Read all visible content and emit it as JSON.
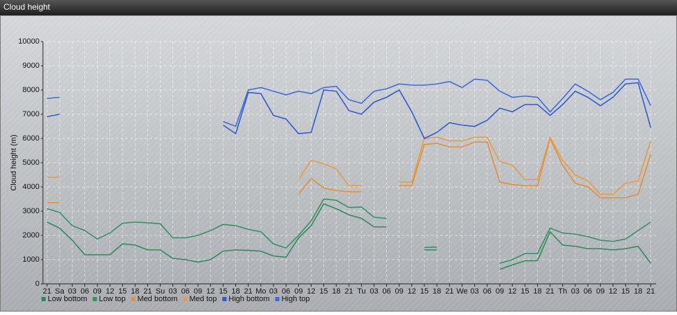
{
  "chart_data": {
    "type": "line",
    "title": "Cloud height",
    "y_label": "Cloud height (m)",
    "categories": [
      "21",
      "Sa",
      "03",
      "06",
      "09",
      "12",
      "15",
      "18",
      "21",
      "Su",
      "03",
      "06",
      "09",
      "12",
      "15",
      "18",
      "21",
      "Mo",
      "03",
      "06",
      "09",
      "12",
      "15",
      "18",
      "21",
      "Tu",
      "03",
      "06",
      "09",
      "12",
      "15",
      "18",
      "21",
      "We",
      "03",
      "06",
      "09",
      "12",
      "15",
      "18",
      "21",
      "Th",
      "03",
      "06",
      "09",
      "12",
      "15",
      "18",
      "21"
    ],
    "ylim": [
      0,
      10000
    ],
    "yticks": [
      0,
      1000,
      2000,
      3000,
      4000,
      5000,
      6000,
      7000,
      8000,
      9000,
      10000
    ],
    "grid": true,
    "series": [
      {
        "name": "Low bottom",
        "color": "#2e8b57",
        "values": [
          2550,
          2300,
          1800,
          1200,
          1200,
          1200,
          1650,
          1600,
          1400,
          1400,
          1050,
          1000,
          900,
          1000,
          1350,
          1400,
          1380,
          1350,
          1150,
          1100,
          1900,
          2400,
          3300,
          3100,
          2850,
          2700,
          2350,
          2350,
          null,
          null,
          1400,
          1400,
          null,
          null,
          null,
          null,
          600,
          780,
          950,
          960,
          2150,
          1600,
          1550,
          1450,
          1450,
          1400,
          1450,
          1550,
          850
        ]
      },
      {
        "name": "Low top",
        "color": "#33935f",
        "values": [
          3100,
          2950,
          2400,
          2200,
          1850,
          2100,
          2500,
          2550,
          2520,
          2480,
          1900,
          1900,
          2000,
          2200,
          2450,
          2400,
          2250,
          2150,
          1650,
          1480,
          2000,
          2600,
          3500,
          3450,
          3150,
          3170,
          2750,
          2700,
          null,
          null,
          1500,
          1520,
          null,
          null,
          null,
          null,
          850,
          1000,
          1250,
          1250,
          2300,
          2100,
          2050,
          1950,
          1800,
          1750,
          1850,
          2200,
          2550
        ]
      },
      {
        "name": "Med bottom",
        "color": "#e58e32",
        "values": [
          3350,
          3350,
          null,
          null,
          null,
          null,
          null,
          null,
          null,
          null,
          null,
          null,
          null,
          null,
          null,
          null,
          null,
          null,
          null,
          null,
          3700,
          4350,
          3950,
          3850,
          3800,
          3800,
          null,
          null,
          4050,
          4050,
          5750,
          5800,
          5650,
          5650,
          5850,
          5850,
          4200,
          4100,
          4050,
          4050,
          6000,
          4900,
          4150,
          4000,
          3550,
          3550,
          3550,
          3700,
          5350
        ]
      },
      {
        "name": "Med top",
        "color": "#ec9a40",
        "values": [
          4400,
          4400,
          null,
          null,
          null,
          null,
          null,
          null,
          null,
          null,
          null,
          null,
          null,
          null,
          null,
          null,
          null,
          null,
          null,
          null,
          4300,
          5100,
          4950,
          4750,
          4050,
          4050,
          null,
          null,
          4200,
          4200,
          6000,
          6050,
          5900,
          5900,
          6050,
          6050,
          5050,
          4900,
          4300,
          4300,
          6050,
          5100,
          4500,
          4250,
          3700,
          3700,
          4150,
          4250,
          5900
        ]
      },
      {
        "name": "High bottom",
        "color": "#2f5bd0",
        "values": [
          6900,
          7000,
          null,
          null,
          null,
          null,
          null,
          null,
          null,
          null,
          null,
          null,
          null,
          null,
          6550,
          6200,
          7900,
          7850,
          6950,
          6800,
          6200,
          6250,
          8000,
          7950,
          7150,
          7000,
          7500,
          7700,
          8000,
          7100,
          6000,
          6250,
          6650,
          6550,
          6500,
          6750,
          7250,
          7100,
          7400,
          7400,
          6950,
          7400,
          7950,
          7700,
          7350,
          7700,
          8250,
          8300,
          6450
        ]
      },
      {
        "name": "High top",
        "color": "#3d6be0",
        "values": [
          7650,
          7700,
          null,
          null,
          null,
          null,
          null,
          null,
          null,
          null,
          null,
          null,
          null,
          null,
          6700,
          6500,
          8000,
          8100,
          7950,
          7800,
          7950,
          7850,
          8100,
          8150,
          7600,
          7450,
          7950,
          8050,
          8250,
          8200,
          8200,
          8250,
          8350,
          8100,
          8450,
          8400,
          7950,
          7700,
          7750,
          7700,
          7100,
          7650,
          8250,
          7950,
          7600,
          7900,
          8450,
          8450,
          7350
        ]
      }
    ]
  }
}
